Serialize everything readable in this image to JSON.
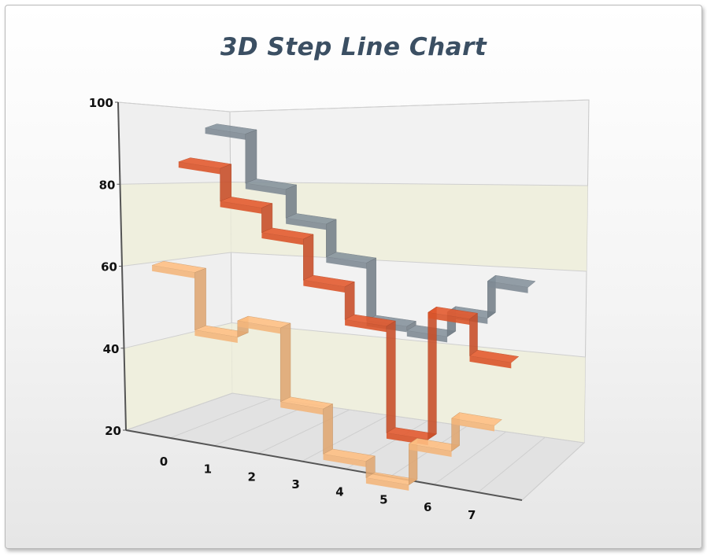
{
  "chart_data": {
    "type": "line",
    "subtype": "3d-step-line",
    "title": "3D Step Line Chart",
    "xlabel": "",
    "ylabel": "",
    "x": [
      0,
      1,
      2,
      3,
      4,
      5,
      6,
      7
    ],
    "x_tick_labels": [
      "0",
      "1",
      "2",
      "3",
      "4",
      "5",
      "6",
      "7"
    ],
    "y_ticks": [
      "20",
      "40",
      "60",
      "80",
      "100"
    ],
    "ylim": [
      20,
      100
    ],
    "grid": true,
    "legend": "none",
    "series": [
      {
        "color": "#f3b67c",
        "values": [
          58,
          44,
          48,
          30,
          19,
          15,
          25,
          33
        ]
      },
      {
        "color": "#d9542a",
        "values": [
          81,
          73,
          67,
          57,
          49,
          23,
          54,
          45
        ]
      },
      {
        "color": "#7f8b95",
        "values": [
          87,
          75,
          68,
          60,
          46,
          45,
          51,
          60
        ]
      }
    ],
    "colors": {
      "band": "#efeeda",
      "wall": "#ececec",
      "floor": "#e2e2e2"
    }
  }
}
